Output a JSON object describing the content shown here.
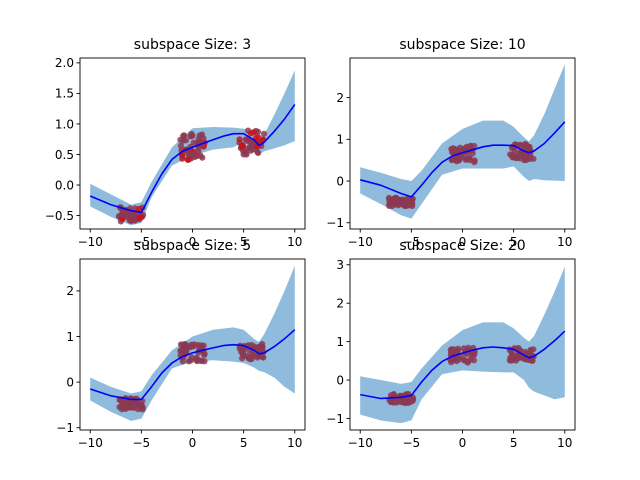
{
  "chart_data": [
    {
      "type": "line",
      "title": "subspace Size: 3",
      "xlabel": "",
      "ylabel": "",
      "xlim": [
        -11,
        11
      ],
      "ylim": [
        -0.72,
        2.08
      ],
      "xticks": [
        -10,
        -5,
        0,
        5,
        10
      ],
      "xtick_labels": [
        "−10",
        "−5",
        "0",
        "5",
        "10"
      ],
      "yticks": [
        -0.5,
        0.0,
        0.5,
        1.0,
        1.5,
        2.0
      ],
      "ytick_labels": [
        "−0.5",
        "0.0",
        "0.5",
        "1.0",
        "1.5",
        "2.0"
      ],
      "series": [
        {
          "kind": "band",
          "color": "#8fbbdd",
          "x": [
            -10,
            -8,
            -6,
            -5,
            -4,
            -2,
            0,
            2,
            4,
            5,
            6,
            6.5,
            7,
            8,
            9,
            10
          ],
          "upper": [
            0.02,
            -0.15,
            -0.32,
            -0.28,
            0.05,
            0.62,
            0.93,
            0.95,
            0.94,
            0.92,
            0.83,
            0.72,
            0.82,
            1.15,
            1.5,
            1.88
          ],
          "lower": [
            -0.35,
            -0.52,
            -0.66,
            -0.62,
            -0.2,
            0.32,
            0.48,
            0.58,
            0.62,
            0.7,
            0.56,
            0.5,
            0.55,
            0.6,
            0.65,
            0.72
          ]
        },
        {
          "kind": "line",
          "color": "#0000ff",
          "x": [
            -10,
            -8,
            -6,
            -5,
            -4,
            -3,
            -2,
            -1,
            0,
            1,
            2,
            3,
            4,
            5,
            6,
            6.5,
            7,
            8,
            9,
            10
          ],
          "y": [
            -0.18,
            -0.32,
            -0.42,
            -0.45,
            -0.12,
            0.18,
            0.42,
            0.55,
            0.62,
            0.68,
            0.74,
            0.8,
            0.84,
            0.84,
            0.74,
            0.65,
            0.7,
            0.88,
            1.08,
            1.32
          ]
        },
        {
          "kind": "scatter",
          "color": "#8b3a52",
          "accent": "#c8131a",
          "clusters": [
            {
              "x": [
                -7.2,
                -4.8
              ],
              "y": [
                -0.6,
                -0.35
              ]
            },
            {
              "x": [
                -1.2,
                1.2
              ],
              "y": [
                0.4,
                0.85
              ]
            },
            {
              "x": [
                4.6,
                7.0
              ],
              "y": [
                0.5,
                0.9
              ]
            }
          ]
        }
      ]
    },
    {
      "type": "line",
      "title": "subspace Size: 10",
      "xlabel": "",
      "ylabel": "",
      "xlim": [
        -11,
        11
      ],
      "ylim": [
        -1.15,
        2.95
      ],
      "xticks": [
        -10,
        -5,
        0,
        5,
        10
      ],
      "xtick_labels": [
        "−10",
        "−5",
        "0",
        "5",
        "10"
      ],
      "yticks": [
        -1,
        0,
        1,
        2
      ],
      "ytick_labels": [
        "−1",
        "0",
        "1",
        "2"
      ],
      "series": [
        {
          "kind": "band",
          "color": "#8fbbdd",
          "x": [
            -10,
            -8,
            -6,
            -5,
            -4,
            -2,
            0,
            2,
            4,
            5,
            6,
            6.5,
            7,
            8,
            9,
            10
          ],
          "upper": [
            0.33,
            0.2,
            0.05,
            0.0,
            0.25,
            0.9,
            1.25,
            1.45,
            1.45,
            1.3,
            1.05,
            0.95,
            1.1,
            1.6,
            2.2,
            2.8
          ],
          "lower": [
            -0.3,
            -0.55,
            -0.82,
            -0.9,
            -0.55,
            0.15,
            0.3,
            0.3,
            0.3,
            0.35,
            0.1,
            0.0,
            0.05,
            0.02,
            0.01,
            0.0
          ]
        },
        {
          "kind": "line",
          "color": "#0000ff",
          "x": [
            -10,
            -8,
            -6,
            -5,
            -4,
            -3,
            -2,
            -1,
            0,
            1,
            2,
            3,
            4,
            5,
            6,
            6.5,
            7,
            8,
            9,
            10
          ],
          "y": [
            0.03,
            -0.1,
            -0.3,
            -0.38,
            -0.1,
            0.2,
            0.45,
            0.6,
            0.68,
            0.75,
            0.82,
            0.86,
            0.86,
            0.85,
            0.72,
            0.68,
            0.72,
            0.9,
            1.15,
            1.42
          ]
        },
        {
          "kind": "scatter",
          "color": "#8b3a52",
          "accent": "#8b3a52",
          "clusters": [
            {
              "x": [
                -7.2,
                -4.8
              ],
              "y": [
                -0.6,
                -0.4
              ]
            },
            {
              "x": [
                -1.2,
                1.2
              ],
              "y": [
                0.45,
                0.85
              ]
            },
            {
              "x": [
                4.6,
                7.0
              ],
              "y": [
                0.5,
                0.9
              ]
            }
          ]
        }
      ]
    },
    {
      "type": "line",
      "title": "subspace Size: 5",
      "xlabel": "",
      "ylabel": "",
      "xlim": [
        -11,
        11
      ],
      "ylim": [
        -1.05,
        2.7
      ],
      "xticks": [
        -10,
        -5,
        0,
        5,
        10
      ],
      "xtick_labels": [
        "−10",
        "−5",
        "0",
        "5",
        "10"
      ],
      "yticks": [
        -1,
        0,
        1,
        2
      ],
      "ytick_labels": [
        "−1",
        "0",
        "1",
        "2"
      ],
      "series": [
        {
          "kind": "band",
          "color": "#8fbbdd",
          "x": [
            -10,
            -8,
            -6,
            -5,
            -4,
            -2,
            0,
            2,
            4,
            5,
            6,
            6.5,
            7,
            8,
            9,
            10
          ],
          "upper": [
            0.1,
            -0.1,
            -0.25,
            -0.2,
            0.15,
            0.7,
            1.0,
            1.15,
            1.2,
            1.15,
            0.95,
            0.88,
            1.05,
            1.5,
            2.0,
            2.55
          ],
          "lower": [
            -0.4,
            -0.65,
            -0.85,
            -0.8,
            -0.4,
            0.3,
            0.45,
            0.48,
            0.45,
            0.42,
            0.32,
            0.25,
            0.22,
            0.1,
            -0.1,
            -0.25
          ]
        },
        {
          "kind": "line",
          "color": "#0000ff",
          "x": [
            -10,
            -8,
            -6,
            -5,
            -4,
            -3,
            -2,
            -1,
            0,
            1,
            2,
            3,
            4,
            5,
            6,
            6.5,
            7,
            8,
            9,
            10
          ],
          "y": [
            -0.15,
            -0.3,
            -0.38,
            -0.38,
            -0.1,
            0.2,
            0.42,
            0.56,
            0.64,
            0.7,
            0.75,
            0.8,
            0.82,
            0.8,
            0.7,
            0.62,
            0.64,
            0.78,
            0.95,
            1.15
          ]
        },
        {
          "kind": "scatter",
          "color": "#8b3a52",
          "accent": "#8b3a52",
          "clusters": [
            {
              "x": [
                -7.2,
                -4.8
              ],
              "y": [
                -0.6,
                -0.35
              ]
            },
            {
              "x": [
                -1.2,
                1.2
              ],
              "y": [
                0.45,
                0.85
              ]
            },
            {
              "x": [
                4.6,
                7.0
              ],
              "y": [
                0.5,
                0.85
              ]
            }
          ]
        }
      ]
    },
    {
      "type": "line",
      "title": "subspace Size: 20",
      "xlabel": "",
      "ylabel": "",
      "xlim": [
        -11,
        11
      ],
      "ylim": [
        -1.3,
        3.15
      ],
      "xticks": [
        -10,
        -5,
        0,
        5,
        10
      ],
      "xtick_labels": [
        "−10",
        "−5",
        "0",
        "5",
        "10"
      ],
      "yticks": [
        -1,
        0,
        1,
        2,
        3
      ],
      "ytick_labels": [
        "−1",
        "0",
        "1",
        "2",
        "3"
      ],
      "series": [
        {
          "kind": "band",
          "color": "#8fbbdd",
          "x": [
            -10,
            -8,
            -6,
            -5,
            -4,
            -2,
            0,
            2,
            4,
            5,
            6,
            6.5,
            7,
            8,
            9,
            10
          ],
          "upper": [
            0.1,
            0.0,
            -0.1,
            -0.05,
            0.3,
            0.9,
            1.3,
            1.5,
            1.5,
            1.35,
            1.1,
            1.0,
            1.15,
            1.7,
            2.3,
            2.95
          ],
          "lower": [
            -0.9,
            -1.05,
            -1.12,
            -1.05,
            -0.5,
            0.15,
            0.25,
            0.22,
            0.2,
            0.2,
            0.0,
            -0.2,
            -0.3,
            -0.4,
            -0.5,
            -0.45
          ]
        },
        {
          "kind": "line",
          "color": "#0000ff",
          "x": [
            -10,
            -8,
            -6,
            -5,
            -4,
            -3,
            -2,
            -1,
            0,
            1,
            2,
            3,
            4,
            5,
            6,
            6.5,
            7,
            8,
            9,
            10
          ],
          "y": [
            -0.38,
            -0.48,
            -0.45,
            -0.4,
            -0.05,
            0.25,
            0.48,
            0.62,
            0.7,
            0.78,
            0.84,
            0.86,
            0.84,
            0.8,
            0.65,
            0.58,
            0.62,
            0.8,
            1.02,
            1.27
          ]
        },
        {
          "kind": "scatter",
          "color": "#8b3a52",
          "accent": "#8b3a52",
          "clusters": [
            {
              "x": [
                -7.2,
                -4.8
              ],
              "y": [
                -0.6,
                -0.35
              ]
            },
            {
              "x": [
                -1.2,
                1.2
              ],
              "y": [
                0.45,
                0.85
              ]
            },
            {
              "x": [
                4.6,
                7.0
              ],
              "y": [
                0.5,
                0.85
              ]
            }
          ]
        }
      ]
    }
  ]
}
